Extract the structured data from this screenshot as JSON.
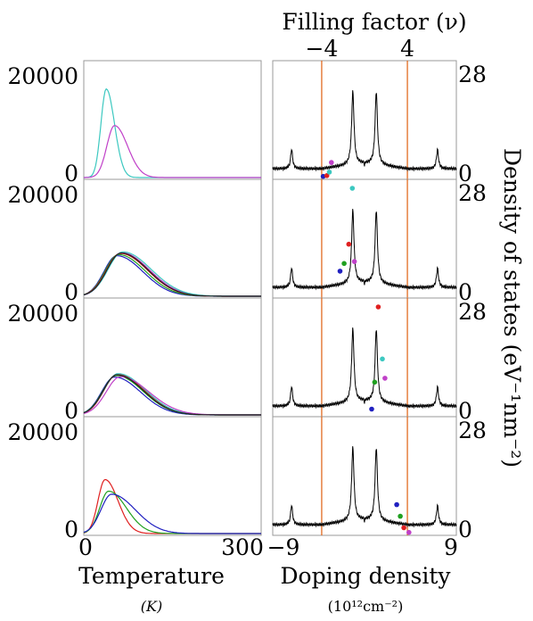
{
  "chart_data": [
    {
      "type": "line",
      "panel": "left",
      "xlabel": "Temperature",
      "xunit": "(K)",
      "xlim": [
        0,
        300
      ],
      "xticks": [
        "0",
        "300"
      ],
      "ylim": [
        0,
        28000
      ],
      "yticks": [
        "0",
        "20000"
      ],
      "rows": [
        {
          "series": [
            {
              "color": "#3cc8c0",
              "peak_x": 38,
              "peak_y": 23000,
              "w_left": 9,
              "w_right": 14
            },
            {
              "color": "#c040c8",
              "peak_x": 52,
              "peak_y": 13500,
              "w_left": 13,
              "w_right": 22
            }
          ]
        },
        {
          "series": [
            {
              "color": "#2020c0",
              "peak_x": 56,
              "peak_y": 10500,
              "w_left": 22,
              "w_right": 44
            },
            {
              "color": "#20a020",
              "peak_x": 59,
              "peak_y": 10800,
              "w_left": 23,
              "w_right": 45
            },
            {
              "color": "#e02020",
              "peak_x": 62,
              "peak_y": 11100,
              "w_left": 24,
              "w_right": 46
            },
            {
              "color": "#c040c8",
              "peak_x": 64,
              "peak_y": 11300,
              "w_left": 24,
              "w_right": 47
            },
            {
              "color": "#3cc8c0",
              "peak_x": 66,
              "peak_y": 11500,
              "w_left": 25,
              "w_right": 48
            },
            {
              "color": "#202020",
              "peak_x": 63,
              "peak_y": 11200,
              "w_left": 24,
              "w_right": 46
            }
          ]
        },
        {
          "series": [
            {
              "color": "#2020c0",
              "peak_x": 52,
              "peak_y": 9800,
              "w_left": 22,
              "w_right": 44
            },
            {
              "color": "#20a020",
              "peak_x": 55,
              "peak_y": 10200,
              "w_left": 23,
              "w_right": 45
            },
            {
              "color": "#e02020",
              "peak_x": 57,
              "peak_y": 10500,
              "w_left": 23,
              "w_right": 46
            },
            {
              "color": "#3cc8c0",
              "peak_x": 58,
              "peak_y": 10700,
              "w_left": 24,
              "w_right": 46
            },
            {
              "color": "#c040c8",
              "peak_x": 62,
              "peak_y": 9900,
              "w_left": 24,
              "w_right": 48
            },
            {
              "color": "#202020",
              "peak_x": 56,
              "peak_y": 10400,
              "w_left": 23,
              "w_right": 45
            }
          ]
        },
        {
          "series": [
            {
              "color": "#e02020",
              "peak_x": 36,
              "peak_y": 14000,
              "w_left": 12,
              "w_right": 22
            },
            {
              "color": "#20a020",
              "peak_x": 42,
              "peak_y": 11000,
              "w_left": 15,
              "w_right": 30
            },
            {
              "color": "#2020c0",
              "peak_x": 47,
              "peak_y": 10200,
              "w_left": 18,
              "w_right": 40
            }
          ]
        }
      ]
    },
    {
      "type": "line",
      "panel": "right",
      "xlabel": "Doping density",
      "xunit": "(10¹²cm⁻²)",
      "xlim": [
        -9,
        9
      ],
      "xticks": [
        "−9",
        "9"
      ],
      "ylim": [
        0,
        28
      ],
      "yticks": [
        "0",
        "28"
      ],
      "ylabel": "Density of states (eV⁻¹nm⁻²)",
      "top_axis_label": "Filling factor (ν)",
      "top_ticks": [
        {
          "label": "−4",
          "x": -4.2
        },
        {
          "label": "4",
          "x": 4.2
        }
      ],
      "vlines": {
        "x": [
          -4.2,
          4.2
        ],
        "color": "#e06010"
      },
      "dos_curve": {
        "color": "#000000",
        "base": 2.3,
        "outer_peaks": {
          "x": 7.15,
          "height": 5.0
        },
        "main_peaks": {
          "x": 1.15,
          "height": 23.0
        },
        "dip_at_zero": 3.0
      },
      "markers": [
        {
          "row": 0,
          "points": [
            {
              "x": -4.05,
              "y": 0.3,
              "color": "#2020c0"
            },
            {
              "x": -3.7,
              "y": 0.5,
              "color": "#e02020"
            },
            {
              "x": -3.45,
              "y": 1.4,
              "color": "#3cc8c0"
            },
            {
              "x": -3.25,
              "y": 3.9,
              "color": "#c040c8"
            }
          ]
        },
        {
          "row": 1,
          "points": [
            {
              "x": -2.4,
              "y": 6.5,
              "color": "#2020c0"
            },
            {
              "x": -2.0,
              "y": 8.5,
              "color": "#20a020"
            },
            {
              "x": -1.55,
              "y": 13.5,
              "color": "#e02020"
            },
            {
              "x": -1.0,
              "y": 9.0,
              "color": "#c040c8"
            },
            {
              "x": -1.2,
              "y": 28.0,
              "color": "#3cc8c0"
            }
          ]
        },
        {
          "row": 2,
          "points": [
            {
              "x": 0.7,
              "y": 1.5,
              "color": "#2020c0"
            },
            {
              "x": 1.0,
              "y": 8.5,
              "color": "#20a020"
            },
            {
              "x": 1.35,
              "y": 28.0,
              "color": "#e02020"
            },
            {
              "x": 1.75,
              "y": 14.5,
              "color": "#3cc8c0"
            },
            {
              "x": 2.0,
              "y": 9.5,
              "color": "#c040c8"
            }
          ]
        },
        {
          "row": 3,
          "points": [
            {
              "x": 3.15,
              "y": 7.5,
              "color": "#2020c0"
            },
            {
              "x": 3.5,
              "y": 4.5,
              "color": "#20a020"
            },
            {
              "x": 3.85,
              "y": 1.5,
              "color": "#e02020"
            },
            {
              "x": 4.35,
              "y": 0.3,
              "color": "#c040c8"
            }
          ]
        }
      ]
    }
  ]
}
